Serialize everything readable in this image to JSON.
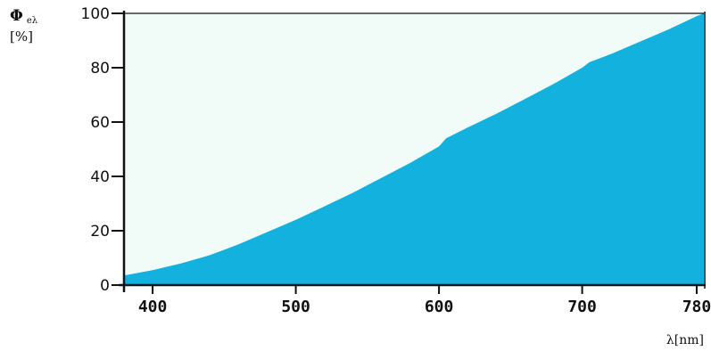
{
  "chart_data": {
    "type": "area",
    "title": "",
    "ylabel_symbol": "Φ",
    "ylabel_subscript": "eλ",
    "ylabel_unit": "[%]",
    "xlabel": "λ[nm]",
    "xlim": [
      380,
      785
    ],
    "ylim": [
      0,
      100
    ],
    "xticks": [
      400,
      500,
      600,
      700,
      780
    ],
    "yticks": [
      0,
      20,
      40,
      60,
      80,
      100
    ],
    "grid": false,
    "fill_color": "#12b1de",
    "plot_background": "#f1fbf7",
    "series": [
      {
        "x": [
          380,
          400,
          420,
          440,
          460,
          480,
          500,
          520,
          540,
          560,
          580,
          600,
          605,
          620,
          640,
          660,
          680,
          700,
          705,
          720,
          740,
          760,
          780,
          785
        ],
        "y": [
          3.5,
          5.5,
          8,
          11,
          15,
          19.5,
          24,
          29,
          34,
          39.5,
          45,
          51,
          54,
          58,
          63,
          68.5,
          74,
          80,
          82,
          85,
          89.5,
          94,
          99,
          100
        ]
      }
    ]
  }
}
